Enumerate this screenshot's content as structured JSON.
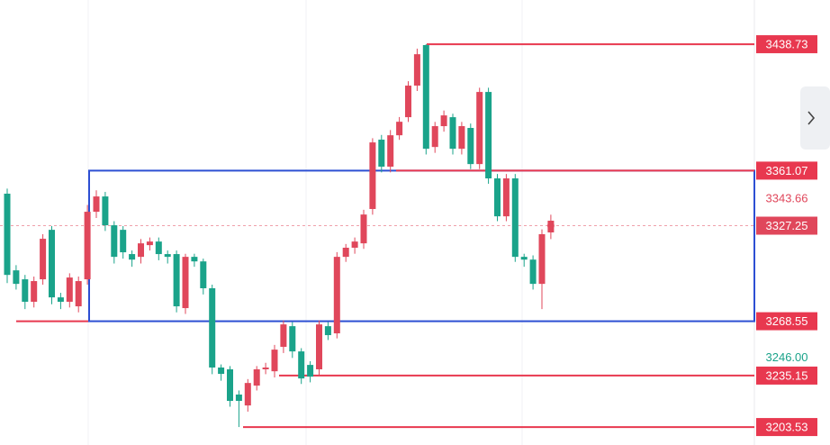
{
  "chart_data": {
    "type": "candlestick",
    "up_color": "#e0475b",
    "down_color": "#1aa38a",
    "level_color": "#e8384f",
    "box_color": "#2d4fd3",
    "ylim": [
      3192.5,
      3465.9
    ],
    "open": [
      3346.9,
      3299.8,
      3294.3,
      3280.5,
      3294.3,
      3324.7,
      3283.2,
      3280.5,
      3277.7,
      3294.3,
      3335.8,
      3345.2,
      3327.5,
      3324.7,
      3309.8,
      3308.1,
      3315.3,
      3317.5,
      3309.8,
      3309.8,
      3276.6,
      3308.1,
      3305.3,
      3288.8,
      3240.1,
      3239.0,
      3223.5,
      3216.8,
      3229.0,
      3239.0,
      3237.8,
      3252.8,
      3265.5,
      3250.0,
      3241.7,
      3239.0,
      3265.5,
      3261.1,
      3308.1,
      3313.7,
      3316.4,
      3337.5,
      3380.1,
      3363.5,
      3382.8,
      3393.9,
      3413.3,
      3438.2,
      3375.6,
      3388.4,
      3393.9,
      3374.5,
      3387.3,
      3365.1,
      3409.4,
      3356.3,
      3333.0,
      3356.3,
      3308.1,
      3306.4,
      3291.5,
      3323.1
    ],
    "high": [
      3350.0,
      3303.0,
      3297.0,
      3296.0,
      3322.0,
      3327.0,
      3286.0,
      3298.0,
      3296.0,
      3340.0,
      3349.0,
      3348.0,
      3330.0,
      3327.0,
      3312.0,
      3319.0,
      3320.0,
      3320.0,
      3312.0,
      3312.0,
      3310.0,
      3310.0,
      3307.0,
      3291.0,
      3242.0,
      3241.0,
      3226.0,
      3233.0,
      3241.0,
      3243.0,
      3254.0,
      3269.0,
      3268.0,
      3252.0,
      3244.0,
      3269.0,
      3268.0,
      3311.0,
      3316.0,
      3320.0,
      3337.0,
      3381.0,
      3383.0,
      3386.0,
      3394.0,
      3416.0,
      3436.0,
      3438.73,
      3391.0,
      3398.0,
      3396.0,
      3391.0,
      3390.0,
      3412.0,
      3412.0,
      3359.0,
      3359.0,
      3359.0,
      3310.0,
      3309.0,
      3325.0,
      3334.0
    ],
    "low": [
      3292.0,
      3288.0,
      3276.0,
      3277.0,
      3291.0,
      3279.0,
      3276.0,
      3277.0,
      3274.0,
      3291.0,
      3332.0,
      3324.0,
      3304.0,
      3307.0,
      3302.0,
      3304.0,
      3312.0,
      3306.0,
      3304.0,
      3274.0,
      3273.0,
      3302.0,
      3285.0,
      3236.0,
      3232.0,
      3216.0,
      3203.53,
      3213.0,
      3226.0,
      3236.0,
      3234.0,
      3249.0,
      3246.0,
      3230.0,
      3231.0,
      3235.0,
      3257.0,
      3258.0,
      3305.0,
      3310.0,
      3313.0,
      3334.0,
      3360.0,
      3360.0,
      3380.0,
      3391.0,
      3410.0,
      3371.0,
      3372.0,
      3385.0,
      3371.0,
      3371.0,
      3362.0,
      3362.0,
      3353.0,
      3330.0,
      3330.0,
      3305.0,
      3302.0,
      3288.0,
      3276.0,
      3319.0
    ],
    "close": [
      3297.0,
      3291.5,
      3280.5,
      3293.2,
      3319.2,
      3283.2,
      3280.5,
      3295.4,
      3293.2,
      3335.8,
      3345.2,
      3327.5,
      3308.1,
      3310.9,
      3306.4,
      3316.4,
      3317.5,
      3309.8,
      3308.1,
      3277.7,
      3308.1,
      3305.3,
      3288.8,
      3240.1,
      3236.2,
      3219.6,
      3219.6,
      3230.6,
      3239.0,
      3240.1,
      3251.1,
      3266.6,
      3250.0,
      3233.4,
      3234.5,
      3266.6,
      3260.0,
      3308.1,
      3313.7,
      3317.5,
      3334.1,
      3378.4,
      3363.5,
      3382.8,
      3391.1,
      3413.3,
      3432.6,
      3374.5,
      3388.4,
      3395.0,
      3374.5,
      3388.4,
      3365.1,
      3409.4,
      3356.3,
      3333.0,
      3356.3,
      3308.1,
      3306.4,
      3291.5,
      3322.0,
      3330.3
    ],
    "levels": [
      3438.73,
      3361.07,
      3268.55,
      3235.15,
      3203.53
    ],
    "current_price": 3327.25,
    "high_mark": 3343.66,
    "low_mark": {
      "value": 3246,
      "label": "3246.00"
    }
  }
}
